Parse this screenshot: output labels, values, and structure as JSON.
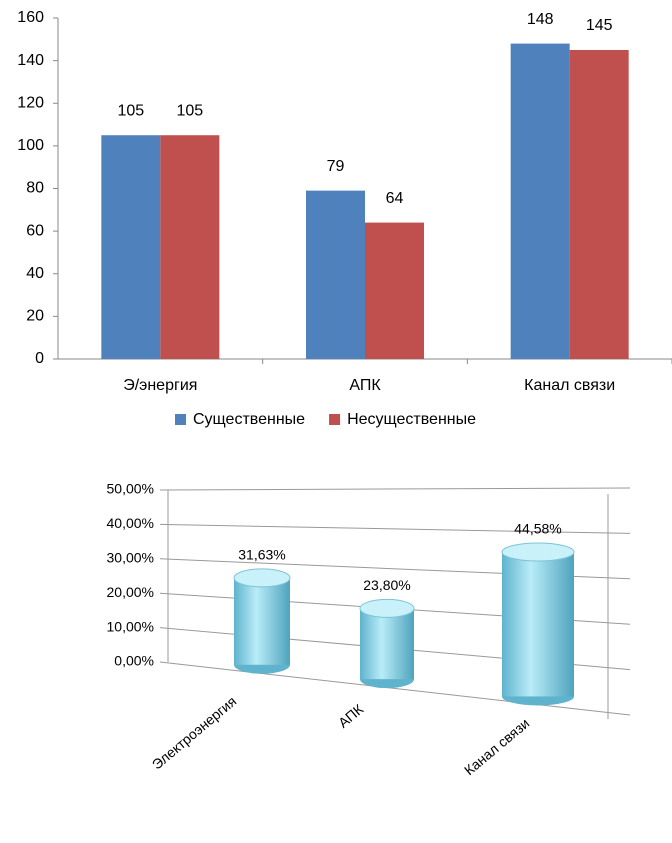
{
  "chart_data": [
    {
      "type": "bar",
      "categories": [
        "Э/энергия",
        "АПК",
        "Канал связи"
      ],
      "series": [
        {
          "name": "Существенные",
          "color": "#4f81bd",
          "values": [
            105,
            79,
            148
          ]
        },
        {
          "name": "Несущественные",
          "color": "#c0504d",
          "values": [
            105,
            64,
            145
          ]
        }
      ],
      "ylim": [
        0,
        160
      ],
      "yticks": [
        0,
        20,
        40,
        60,
        80,
        100,
        120,
        140,
        160
      ],
      "legend": "bottom"
    },
    {
      "type": "cylinder",
      "categories": [
        "Электроэнергия",
        "АПК",
        "Канал связи"
      ],
      "values": [
        31.63,
        23.8,
        44.58
      ],
      "value_labels": [
        "31,63%",
        "23,80%",
        "44,58%"
      ],
      "color": "#8fd3e6",
      "ylim": [
        0,
        50
      ],
      "yticks": [
        {
          "value": 0,
          "label": "0,00%"
        },
        {
          "value": 10,
          "label": "10,00%"
        },
        {
          "value": 20,
          "label": "20,00%"
        },
        {
          "value": 30,
          "label": "30,00%"
        },
        {
          "value": 40,
          "label": "40,00%"
        },
        {
          "value": 50,
          "label": "50,00%"
        }
      ],
      "grid": true
    }
  ]
}
